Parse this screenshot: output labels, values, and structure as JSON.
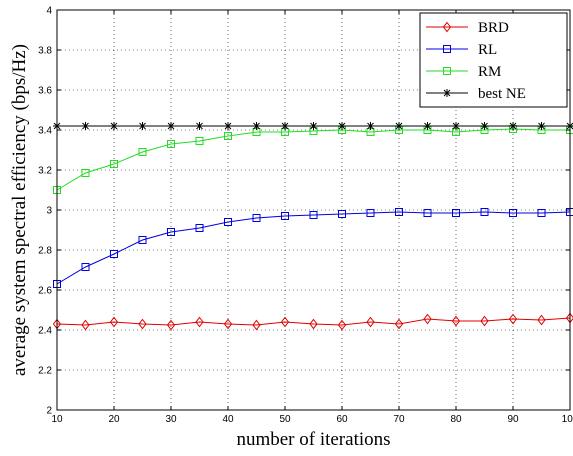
{
  "chart_data": {
    "type": "line",
    "xlabel": "number of iterations",
    "ylabel": "average system spectral efficiency (bps/Hz)",
    "xlim": [
      10,
      100
    ],
    "ylim": [
      2,
      4
    ],
    "x_ticks": [
      "10",
      "20",
      "30",
      "40",
      "50",
      "60",
      "70",
      "80",
      "90",
      "100"
    ],
    "y_ticks": [
      "2",
      "2.2",
      "2.4",
      "2.6",
      "2.8",
      "3",
      "3.2",
      "3.4",
      "3.6",
      "3.8",
      "4"
    ],
    "x_tick_values": [
      10,
      20,
      30,
      40,
      50,
      60,
      70,
      80,
      90,
      100
    ],
    "y_tick_values": [
      2,
      2.2,
      2.4,
      2.6,
      2.8,
      3,
      3.2,
      3.4,
      3.6,
      3.8,
      4
    ],
    "grid": true,
    "legend_position": "top-right",
    "x": [
      10,
      15,
      20,
      25,
      30,
      35,
      40,
      45,
      50,
      55,
      60,
      65,
      70,
      75,
      80,
      85,
      90,
      95,
      100
    ],
    "series": [
      {
        "name": "BRD",
        "color": "#e00000",
        "marker": "diamond",
        "values": [
          2.43,
          2.425,
          2.44,
          2.43,
          2.425,
          2.44,
          2.43,
          2.425,
          2.44,
          2.43,
          2.425,
          2.44,
          2.43,
          2.455,
          2.445,
          2.445,
          2.455,
          2.45,
          2.46
        ]
      },
      {
        "name": "RL",
        "color": "#0000e0",
        "marker": "square",
        "values": [
          2.63,
          2.715,
          2.78,
          2.85,
          2.89,
          2.91,
          2.94,
          2.96,
          2.97,
          2.975,
          2.98,
          2.985,
          2.99,
          2.985,
          2.985,
          2.99,
          2.985,
          2.985,
          2.99
        ]
      },
      {
        "name": "RM",
        "color": "#22dd22",
        "marker": "square",
        "values": [
          3.1,
          3.185,
          3.23,
          3.29,
          3.33,
          3.345,
          3.37,
          3.39,
          3.39,
          3.395,
          3.4,
          3.39,
          3.4,
          3.4,
          3.39,
          3.4,
          3.405,
          3.4,
          3.4
        ]
      },
      {
        "name": "best NE",
        "color": "#000000",
        "marker": "star",
        "values": [
          3.42,
          3.42,
          3.42,
          3.42,
          3.42,
          3.42,
          3.42,
          3.42,
          3.42,
          3.42,
          3.42,
          3.42,
          3.42,
          3.42,
          3.42,
          3.42,
          3.42,
          3.42,
          3.42
        ]
      }
    ]
  }
}
